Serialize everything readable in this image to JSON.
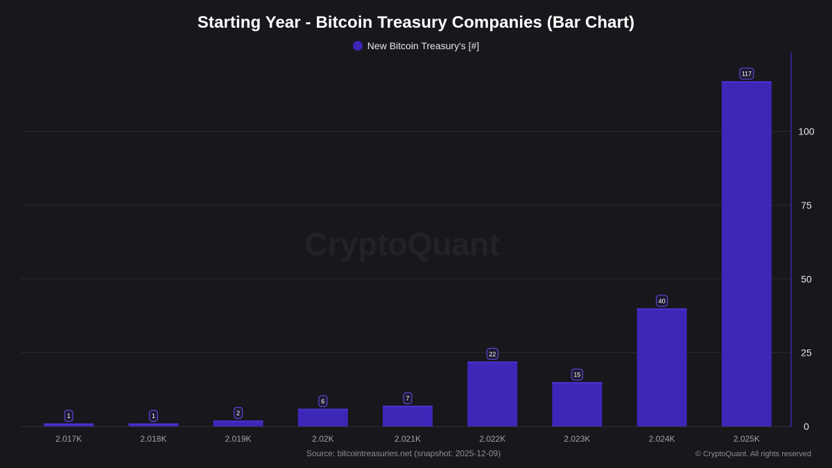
{
  "chart_data": {
    "type": "bar",
    "title": "Starting Year - Bitcoin Treasury Companies (Bar Chart)",
    "categories": [
      "2.017K",
      "2.018K",
      "2.019K",
      "2.02K",
      "2.021K",
      "2.022K",
      "2.023K",
      "2.024K",
      "2.025K"
    ],
    "series": [
      {
        "name": "New Bitcoin Treasury's [#]",
        "values": [
          1,
          1,
          2,
          6,
          7,
          22,
          15,
          40,
          117
        ],
        "color": "#3d27b8"
      }
    ],
    "data_labels": [
      "1",
      "1",
      "2",
      "6",
      "7",
      "22",
      "15",
      "40",
      "117"
    ],
    "y_ticks": [
      "0",
      "25",
      "50",
      "75",
      "100"
    ],
    "y_tick_values": [
      0,
      25,
      50,
      75,
      100
    ],
    "ylim": [
      0,
      126
    ],
    "y_axis_side": "right",
    "grid": true,
    "legend_position": "top-center",
    "watermark": "CryptoQuant",
    "colors": {
      "background": "#18171c",
      "bar": "#3d27b8",
      "bar_highlight": "#4a33d1",
      "axis": "#3d27b8",
      "grid": "#2a2930",
      "label_border": "#5b49d6",
      "label_bg": "#1d1a33"
    }
  },
  "source_text": "Source: bitcointreasuries.net (snapshot: 2025-12-09)",
  "copyright_text": "© CryptoQuant. All rights reserved"
}
